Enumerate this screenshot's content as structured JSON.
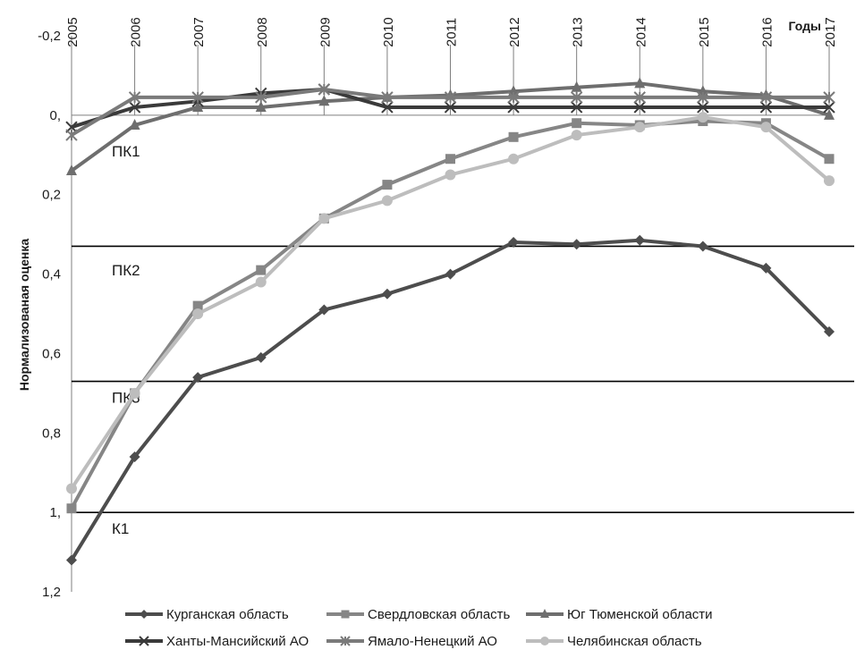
{
  "chart_data": {
    "type": "line",
    "ylabel": "Нормализованая оценка",
    "xlabel": "Годы",
    "x": [
      "2005",
      "2006",
      "2007",
      "2008",
      "2009",
      "2010",
      "2011",
      "2012",
      "2013",
      "2014",
      "2015",
      "2016",
      "2017"
    ],
    "y_tick_labels": [
      "-0,2",
      "0,",
      "0,2",
      "0,4",
      "0,6",
      "0,8",
      "1,",
      "1,2"
    ],
    "y_tick_values": [
      -0.2,
      0,
      0.2,
      0.4,
      0.6,
      0.8,
      1.0,
      1.2
    ],
    "ylim": [
      -0.2,
      1.2
    ],
    "y_inverted": true,
    "thresholds": [
      {
        "label": "ПК1",
        "value": null,
        "label_y": 0.09
      },
      {
        "label": "ПК2",
        "value": 0.33,
        "label_y": 0.39
      },
      {
        "label": "ПК3",
        "value": 0.67,
        "label_y": 0.71
      },
      {
        "label": "К1",
        "value": 1.0,
        "label_y": 1.04
      }
    ],
    "series": [
      {
        "name": "Курганская область",
        "marker": "diamond",
        "color": "#4d4d4d",
        "values": [
          1.12,
          0.86,
          0.66,
          0.61,
          0.49,
          0.45,
          0.4,
          0.32,
          0.325,
          0.315,
          0.33,
          0.385,
          0.545
        ]
      },
      {
        "name": "Свердловская область",
        "marker": "square",
        "color": "#868686",
        "values": [
          0.99,
          0.7,
          0.48,
          0.39,
          0.26,
          0.175,
          0.11,
          0.055,
          0.02,
          0.025,
          0.015,
          0.02,
          0.11
        ]
      },
      {
        "name": "Юг Тюменской области",
        "marker": "triangle",
        "color": "#6e6e6e",
        "values": [
          0.14,
          0.025,
          -0.02,
          -0.02,
          -0.035,
          -0.045,
          -0.05,
          -0.06,
          -0.07,
          -0.08,
          -0.06,
          -0.05,
          0.0
        ]
      },
      {
        "name": "Ханты-Мансийский АО",
        "marker": "x",
        "color": "#3a3a3a",
        "values": [
          0.03,
          -0.02,
          -0.035,
          -0.055,
          -0.065,
          -0.02,
          -0.02,
          -0.02,
          -0.02,
          -0.02,
          -0.02,
          -0.02,
          -0.02
        ]
      },
      {
        "name": "Ямало-Ненецкий АО",
        "marker": "star",
        "color": "#7a7a7a",
        "values": [
          0.05,
          -0.045,
          -0.045,
          -0.045,
          -0.065,
          -0.045,
          -0.045,
          -0.045,
          -0.045,
          -0.045,
          -0.045,
          -0.045,
          -0.045
        ]
      },
      {
        "name": "Челябинская область",
        "marker": "circle",
        "color": "#bdbdbd",
        "values": [
          0.94,
          0.7,
          0.5,
          0.42,
          0.26,
          0.215,
          0.15,
          0.11,
          0.05,
          0.03,
          0.005,
          0.03,
          0.165
        ]
      }
    ]
  }
}
